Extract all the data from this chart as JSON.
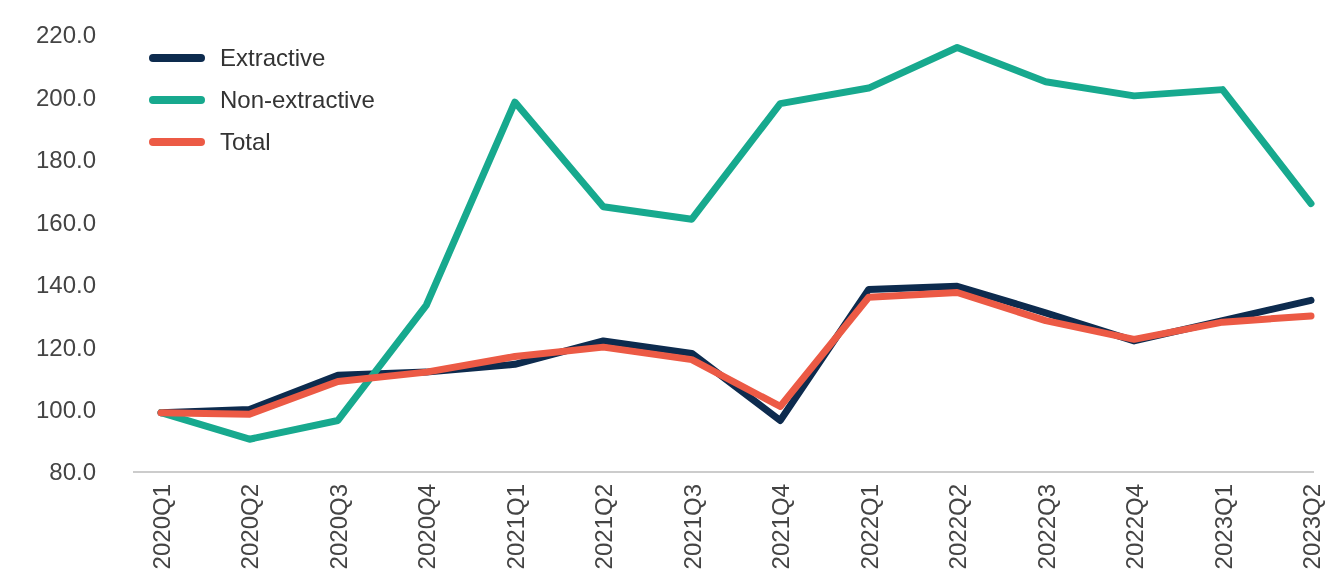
{
  "chart_data": {
    "type": "line",
    "categories": [
      "2020Q1",
      "2020Q2",
      "2020Q3",
      "2020Q4",
      "2021Q1",
      "2021Q2",
      "2021Q3",
      "2021Q4",
      "2022Q1",
      "2022Q2",
      "2022Q3",
      "2022Q4",
      "2023Q1",
      "2023Q2"
    ],
    "series": [
      {
        "name": "Extractive",
        "color": "#0d2b4e",
        "values": [
          99,
          100,
          111,
          112,
          114.5,
          122,
          118,
          96.5,
          138.5,
          139.5,
          131,
          122,
          128.5,
          135
        ]
      },
      {
        "name": "Non-extractive",
        "color": "#17a98e",
        "values": [
          99,
          90.5,
          96.5,
          133.5,
          198.5,
          165,
          161,
          198,
          203,
          216,
          205,
          200.5,
          202.5,
          166
        ]
      },
      {
        "name": "Total",
        "color": "#ec5a45",
        "values": [
          99,
          98.5,
          109,
          112,
          117,
          120,
          116,
          101,
          136,
          137.5,
          128.5,
          122.5,
          128,
          130
        ]
      }
    ],
    "ylim": [
      80,
      220
    ],
    "yticks": [
      {
        "value": 80,
        "label": "80.0"
      },
      {
        "value": 100,
        "label": "100.0"
      },
      {
        "value": 120,
        "label": "120.0"
      },
      {
        "value": 140,
        "label": "140.0"
      },
      {
        "value": 160,
        "label": "160.0"
      },
      {
        "value": 180,
        "label": "180.0"
      },
      {
        "value": 200,
        "label": "200.0"
      },
      {
        "value": 220,
        "label": "220.0"
      }
    ],
    "grid": false,
    "legend": "top left",
    "marker": "none",
    "line_style": "solid"
  }
}
